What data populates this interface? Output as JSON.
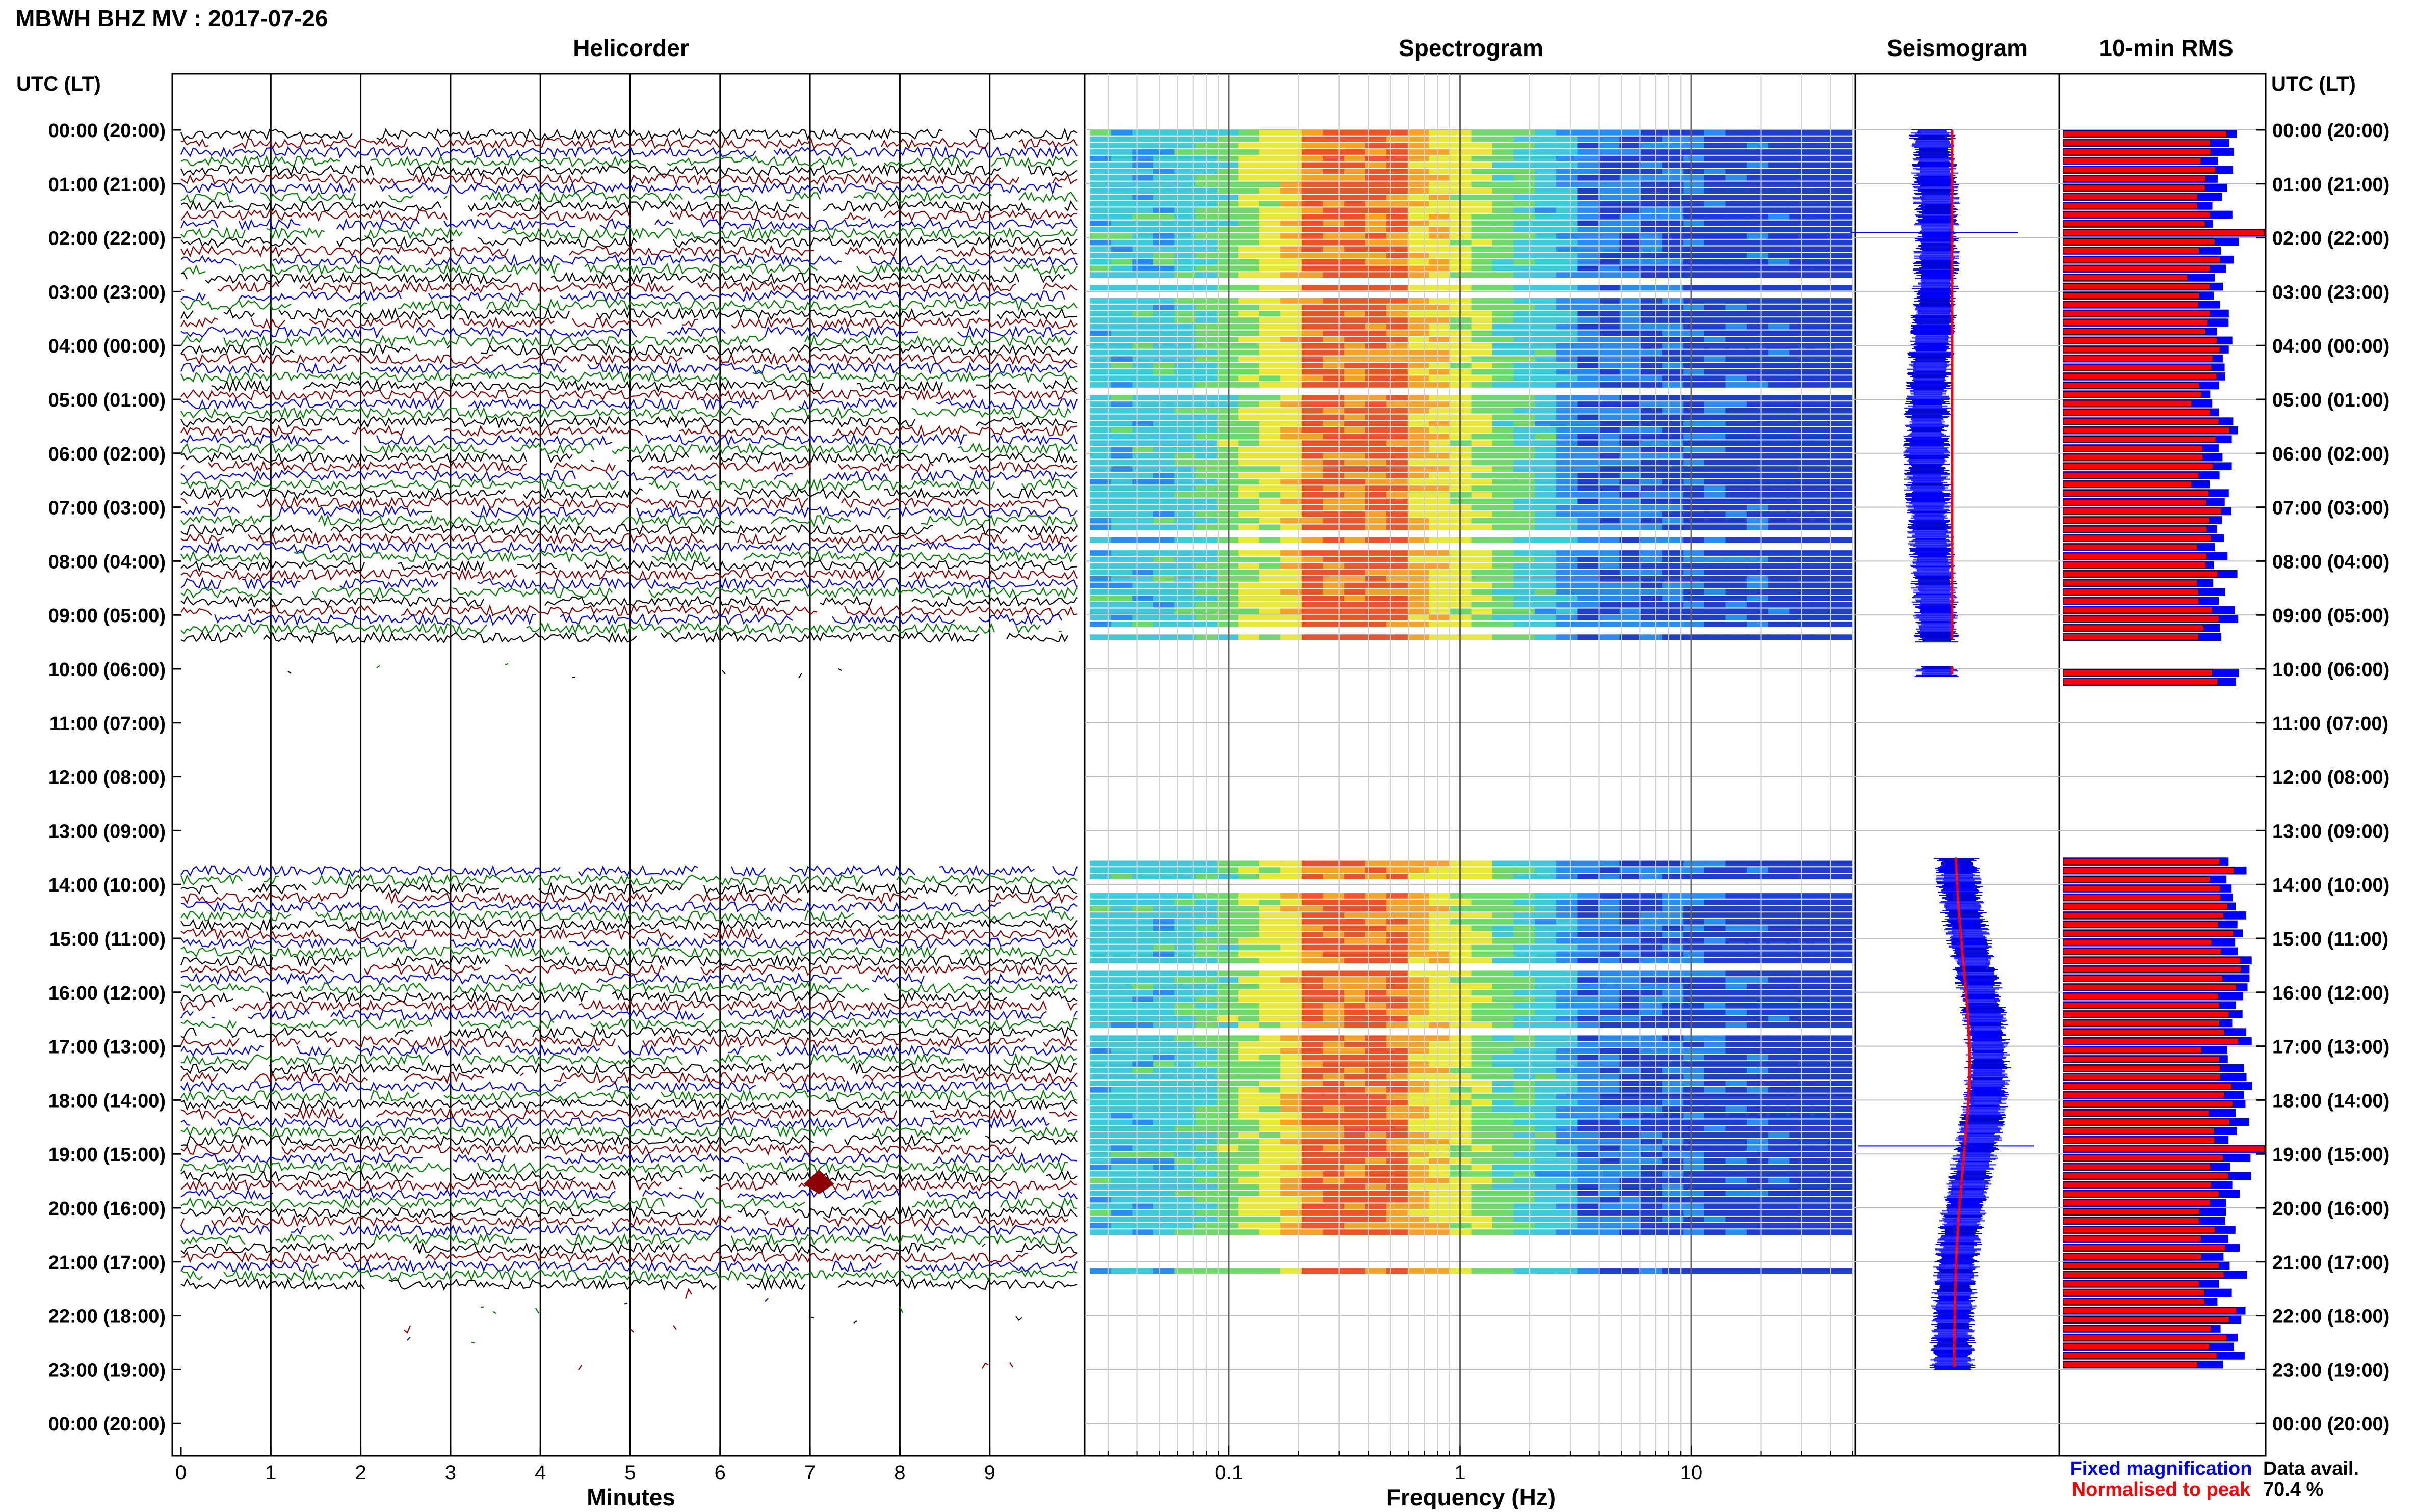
{
  "title": "MBWH BHZ MV : 2017-07-26",
  "panels": {
    "helicorder": "Helicorder",
    "spectrogram": "Spectrogram",
    "seismogram": "Seismogram",
    "rms": "10-min RMS"
  },
  "time_axis_label": "UTC (LT)",
  "hour_labels": [
    "00:00 (20:00)",
    "01:00 (21:00)",
    "02:00 (22:00)",
    "03:00 (23:00)",
    "04:00 (00:00)",
    "05:00 (01:00)",
    "06:00 (02:00)",
    "07:00 (03:00)",
    "08:00 (04:00)",
    "09:00 (05:00)",
    "10:00 (06:00)",
    "11:00 (07:00)",
    "12:00 (08:00)",
    "13:00 (09:00)",
    "14:00 (10:00)",
    "15:00 (11:00)",
    "16:00 (12:00)",
    "17:00 (13:00)",
    "18:00 (14:00)",
    "19:00 (15:00)",
    "20:00 (16:00)",
    "21:00 (17:00)",
    "22:00 (18:00)",
    "23:00 (19:00)",
    "00:00 (20:00)"
  ],
  "legend": {
    "fixed": "Fixed magnification",
    "normalised": "Normalised to peak",
    "fixed_color": "#0000ff",
    "normalised_color": "#ff0000"
  },
  "data_avail": {
    "label": "Data avail.",
    "value": "70.4 %"
  },
  "chart_data": [
    {
      "type": "line",
      "panel": "Helicorder",
      "xlabel": "Minutes",
      "ylabel": "UTC (LT)",
      "xticks": [
        "0",
        "1",
        "2",
        "3",
        "4",
        "5",
        "6",
        "7",
        "8",
        "9"
      ],
      "xlim": [
        0,
        10
      ],
      "ylim_hours": [
        0,
        24
      ],
      "trace_colors": [
        "#000000",
        "#8b0000",
        "#0000ff",
        "#008000"
      ],
      "data_segments_hours": [
        [
          0,
          9.45
        ],
        [
          13.55,
          21.5
        ]
      ],
      "sparse_segments_hours": [
        [
          9.45,
          10.1
        ],
        [
          21.5,
          23.0
        ]
      ],
      "event": {
        "hour": 19.5,
        "minute": 7.1
      }
    },
    {
      "type": "heatmap",
      "panel": "Spectrogram",
      "xlabel": "Frequency (Hz)",
      "xscale": "log",
      "xlim": [
        0.025,
        50
      ],
      "xticks": [
        "0.1",
        "1",
        "10"
      ],
      "ylim_hours": [
        0,
        24
      ],
      "data_segments_hours": [
        [
          0,
          9.45
        ],
        [
          13.55,
          20.5
        ],
        [
          20.9,
          21.15
        ]
      ],
      "colormap": [
        "#1e3ecb",
        "#2b8cf0",
        "#3ec8d8",
        "#6fd86a",
        "#e8e83a",
        "#f4a32a",
        "#e9542a"
      ],
      "peak_band_hz": [
        0.2,
        0.6
      ]
    },
    {
      "type": "line",
      "panel": "Seismogram",
      "series": [
        {
          "name": "Fixed magnification",
          "color": "#0000ff"
        },
        {
          "name": "Normalised to peak",
          "color": "#ff0000"
        }
      ],
      "ylim_hours": [
        0,
        24
      ],
      "data_segments_hours": [
        [
          0,
          9.5
        ],
        [
          9.95,
          10.15
        ],
        [
          13.5,
          23.0
        ]
      ]
    },
    {
      "type": "bar",
      "panel": "10-min RMS",
      "bin_minutes": 10,
      "series": [
        {
          "name": "Fixed magnification",
          "color": "#0000ff"
        },
        {
          "name": "Normalised to peak",
          "color": "#ff0000"
        }
      ],
      "ylim_hours": [
        0,
        24
      ],
      "data_segments_hours": [
        [
          0,
          9.5
        ],
        [
          10.0,
          10.33
        ],
        [
          13.5,
          23.0
        ]
      ],
      "peaks_hours": [
        1.9,
        18.85
      ]
    }
  ]
}
